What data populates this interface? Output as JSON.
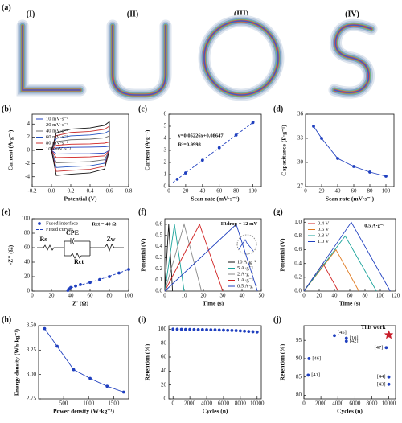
{
  "panel_a": {
    "label": "(a)",
    "items": [
      "(I)",
      "(II)",
      "(III)",
      "(IV)"
    ]
  },
  "chart_data": [
    {
      "type": "line",
      "label": "(b)",
      "xlabel": "Potential (V)",
      "ylabel": "Current (A·g⁻¹)",
      "xlim": [
        -0.2,
        0.8
      ],
      "xticks": [
        -0.2,
        {
          "value": 0,
          "label": "0.0"
        },
        0.2,
        0.4,
        0.6,
        0.8
      ],
      "ylim": [
        -5.5,
        5.5
      ],
      "yticks": [
        -4,
        -2,
        0,
        2,
        4
      ],
      "legend": "upper left",
      "x": [
        0,
        0.05,
        0.2,
        0.4,
        0.55,
        0.6,
        0.6,
        0.55,
        0.4,
        0.2,
        0.05,
        0
      ],
      "series": [
        {
          "name": "10 mV·s⁻¹",
          "color": "#1f3fbf",
          "values": [
            0,
            0.39,
            0.47,
            0.5,
            0.55,
            0.63,
            0,
            -0.41,
            -0.5,
            -0.52,
            -0.55,
            0
          ]
        },
        {
          "name": "20 mV·s⁻¹",
          "color": "#d02020",
          "values": [
            0,
            0.77,
            0.94,
            0.99,
            1.1,
            1.27,
            0,
            -0.83,
            -0.99,
            -1.05,
            -1.1,
            0
          ]
        },
        {
          "name": "40 mV·s⁻¹",
          "color": "#707070",
          "values": [
            0,
            1.33,
            1.62,
            1.71,
            1.9,
            2.19,
            0,
            -1.43,
            -1.71,
            -1.81,
            -1.9,
            0
          ]
        },
        {
          "name": "60 mV·s⁻¹",
          "color": "#2050c0",
          "values": [
            0,
            1.82,
            2.21,
            2.34,
            2.6,
            2.99,
            0,
            -1.95,
            -2.34,
            -2.47,
            -2.6,
            0
          ]
        },
        {
          "name": "80 mV·s⁻¹",
          "color": "#c83030",
          "values": [
            0,
            2.24,
            2.72,
            2.88,
            3.2,
            3.68,
            0,
            -2.4,
            -2.88,
            -3.04,
            -3.2,
            0
          ]
        },
        {
          "name": "100 mV·s⁻¹",
          "color": "#111111",
          "values": [
            0,
            2.66,
            3.23,
            3.42,
            3.8,
            4.37,
            0,
            -2.85,
            -3.42,
            -3.61,
            -3.8,
            0
          ]
        }
      ]
    },
    {
      "type": "scatter",
      "label": "(c)",
      "xlabel": "Scan rate (mV·s⁻¹)",
      "ylabel": "Current (A·g⁻¹)",
      "xlim": [
        0,
        110
      ],
      "xticks": [
        0,
        20,
        40,
        60,
        80,
        100
      ],
      "ylim": [
        0,
        6
      ],
      "yticks": [
        0,
        1,
        2,
        3,
        4,
        5,
        6
      ],
      "x": [
        10,
        20,
        40,
        60,
        80,
        100
      ],
      "values": [
        0.61,
        1.13,
        2.18,
        3.22,
        4.27,
        5.31
      ],
      "color": "#1f3fbf",
      "fit": {
        "x": [
          5,
          102
        ],
        "values": [
          0.35,
          5.42
        ]
      },
      "annotations": [
        "y=0.05226x+0.08647",
        "R²=0.9998"
      ],
      "annotation_color": "#1f3fbf"
    },
    {
      "type": "line",
      "label": "(d)",
      "xlabel": "Scan rate (mV·s⁻¹)",
      "ylabel": "Capacitance (F·g⁻¹)",
      "xlim": [
        0,
        110
      ],
      "xticks": [
        0,
        20,
        40,
        60,
        80,
        100
      ],
      "ylim": [
        27,
        36
      ],
      "yticks": [
        27,
        30,
        33,
        36
      ],
      "x": [
        10,
        20,
        40,
        60,
        80,
        100
      ],
      "values": [
        34.5,
        33,
        30.5,
        29.5,
        28.8,
        28.3
      ],
      "color": "#1f3fbf",
      "markers": true
    },
    {
      "type": "line",
      "label": "(e)",
      "xlabel": "Z' (Ω)",
      "ylabel": "-Z'' (Ω)",
      "xlim": [
        0,
        100
      ],
      "xticks": [
        0,
        20,
        40,
        60,
        80,
        100
      ],
      "ylim": [
        0,
        100
      ],
      "yticks": [
        0,
        20,
        40,
        60,
        80,
        100
      ],
      "legend": "upper left",
      "series": [
        {
          "name": "Fused interface",
          "color": "#1f3fbf",
          "mode": "markers",
          "x": [
            37,
            38,
            40,
            45,
            50,
            60,
            70,
            80,
            90,
            100
          ],
          "values": [
            1,
            3,
            5,
            7,
            9,
            12,
            16,
            20,
            25,
            30
          ]
        },
        {
          "name": "Fitted curves",
          "color": "#1f3fbf",
          "dash": true,
          "x": [
            37,
            38,
            40,
            45,
            50,
            60,
            70,
            80,
            90,
            100
          ],
          "values": [
            1,
            2.5,
            4.5,
            6.5,
            8.5,
            12,
            16,
            20.5,
            25,
            30
          ]
        }
      ],
      "circuit": [
        "Rs",
        "CPE",
        "Zw",
        "Rct"
      ],
      "annotations": [
        "Rct = 40 Ω"
      ]
    },
    {
      "type": "line",
      "label": "(f)",
      "xlabel": "Time (s)",
      "ylabel": "Potential (V)",
      "xlim": [
        0,
        50
      ],
      "xticks": [
        0,
        10,
        20,
        30,
        40,
        50
      ],
      "ylim": [
        0,
        0.65
      ],
      "yticks": [
        {
          "value": 0,
          "label": "0.0"
        },
        0.1,
        0.2,
        0.3,
        0.4,
        0.5,
        0.6
      ],
      "legend": "lower right",
      "series": [
        {
          "name": "10 A·g⁻¹",
          "color": "#111111",
          "x": [
            0,
            2,
            4
          ],
          "values": [
            0,
            0.6,
            0
          ]
        },
        {
          "name": "5 A·g⁻¹",
          "color": "#1aa39a",
          "x": [
            0,
            5,
            10
          ],
          "values": [
            0,
            0.6,
            0
          ]
        },
        {
          "name": "2 A·g⁻¹",
          "color": "#888888",
          "x": [
            0,
            10,
            19
          ],
          "values": [
            0,
            0.6,
            0
          ]
        },
        {
          "name": "1 A·g⁻¹",
          "color": "#d02020",
          "x": [
            0,
            18,
            30
          ],
          "values": [
            0,
            0.6,
            0
          ]
        },
        {
          "name": "0.5 A·g⁻¹",
          "color": "#1f3fbf",
          "x": [
            0,
            37,
            48
          ],
          "values": [
            0,
            0.6,
            0
          ]
        }
      ],
      "annotations": [
        "IRdrop = 12 mV"
      ],
      "annotation_color": "#d02020"
    },
    {
      "type": "line",
      "label": "(g)",
      "xlabel": "Time (s)",
      "ylabel": "Potential (V)",
      "xlim": [
        0,
        120
      ],
      "xticks": [
        0,
        20,
        40,
        60,
        80,
        100,
        120
      ],
      "ylim": [
        0,
        1.05
      ],
      "yticks": [
        {
          "value": 0,
          "label": "0.0"
        },
        0.2,
        0.4,
        0.6,
        0.8,
        {
          "value": 1,
          "label": "1.0"
        }
      ],
      "legend": "upper left",
      "series": [
        {
          "name": "0.4 V",
          "color": "#d02020",
          "x": [
            0,
            25,
            45
          ],
          "values": [
            0,
            0.4,
            0
          ]
        },
        {
          "name": "0.6 V",
          "color": "#e07a20",
          "x": [
            0,
            42,
            72
          ],
          "values": [
            0,
            0.6,
            0
          ]
        },
        {
          "name": "0.8 V",
          "color": "#1aa39a",
          "x": [
            0,
            54,
            95
          ],
          "values": [
            0,
            0.8,
            0
          ]
        },
        {
          "name": "1.0 V",
          "color": "#1f3fbf",
          "x": [
            0,
            62,
            113
          ],
          "values": [
            0,
            1,
            0
          ]
        }
      ],
      "annotations": [
        "0.5 A·g⁻¹"
      ]
    },
    {
      "type": "line",
      "label": "(h)",
      "xlabel": "Power density (W·kg⁻¹)",
      "ylabel": "Energy density (Wh·kg⁻¹)",
      "xlim": [
        0,
        1800
      ],
      "xticks": [
        500,
        1000,
        1500
      ],
      "ylim": [
        2.75,
        3.5
      ],
      "yticks": [
        2.75,
        {
          "value": 3,
          "label": "3.00"
        },
        3.25,
        {
          "value": 3.5,
          "label": "3.50"
        }
      ],
      "x": [
        120,
        370,
        700,
        1030,
        1370,
        1700
      ],
      "values": [
        3.47,
        3.29,
        3.05,
        2.96,
        2.88,
        2.82
      ],
      "color": "#1f3fbf",
      "markers": true
    },
    {
      "type": "scatter",
      "label": "(i)",
      "xlabel": "Cycles (n)",
      "ylabel": "Retention (%)",
      "xlim": [
        -500,
        10500
      ],
      "xticks": [
        0,
        2000,
        4000,
        6000,
        8000,
        10000
      ],
      "ylim": [
        0,
        105
      ],
      "yticks": [
        0,
        20,
        40,
        60,
        80,
        100
      ],
      "x": [
        0,
        500,
        1000,
        1500,
        2000,
        2500,
        3000,
        3500,
        4000,
        4500,
        5000,
        5500,
        6000,
        6500,
        7000,
        7500,
        8000,
        8500,
        9000,
        9500,
        10000
      ],
      "values": [
        100,
        99.9,
        99.8,
        99.7,
        99.6,
        99.5,
        99.4,
        99.3,
        99.2,
        99.1,
        99,
        98.8,
        98.6,
        98.4,
        98.2,
        98,
        97.6,
        97.2,
        96.8,
        96.4,
        96
      ],
      "color": "#1f3fbf"
    },
    {
      "type": "scatter",
      "label": "(j)",
      "xlabel": "Cycles (n)",
      "ylabel": "Retention (%)",
      "xlim": [
        0,
        10800
      ],
      "xticks": [
        0,
        2000,
        4000,
        6000,
        8000,
        10000
      ],
      "ylim": [
        79,
        99
      ],
      "yticks": [
        80,
        85,
        90,
        95
      ],
      "series": [
        {
          "color": "#1f3fbf",
          "x": [
            500,
            600,
            3600,
            5000,
            5000,
            9700,
            10000,
            10000
          ],
          "values": [
            85.5,
            90,
            96.3,
            95.6,
            94.8,
            93,
            85,
            83
          ],
          "labels": [
            "[41]",
            "[46]",
            "[45]",
            "[10]",
            "[42]",
            "[47]",
            "[44]",
            "[43]"
          ]
        },
        {
          "name": "This work",
          "color": "#c81e2a",
          "marker": "star",
          "x": [
            10000
          ],
          "values": [
            96.5
          ]
        }
      ]
    }
  ]
}
